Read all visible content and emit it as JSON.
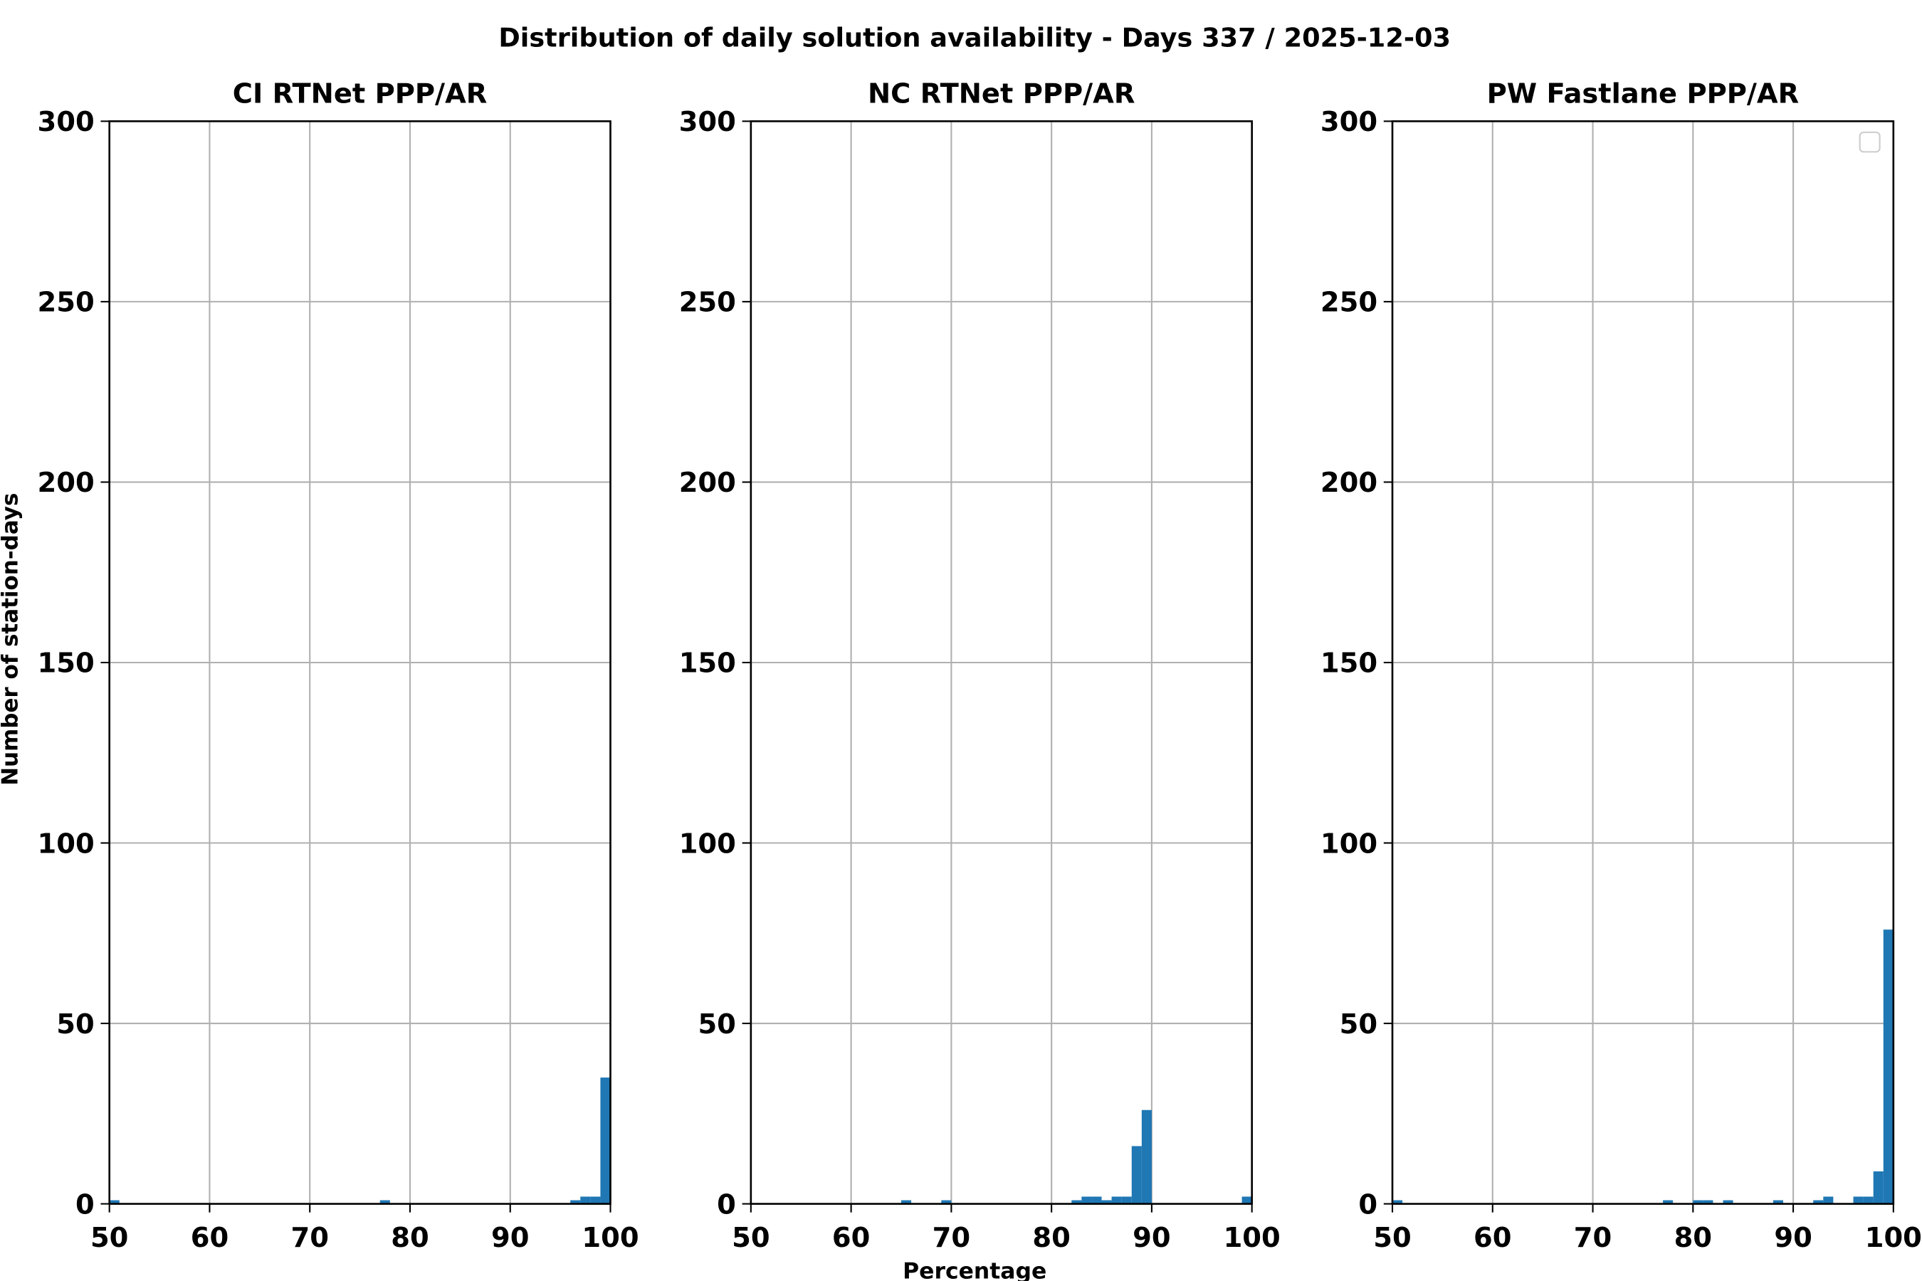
{
  "title": "Distribution of daily solution availability - Days 337  / 2025-12-03",
  "xlabel": "Percentage",
  "ylabel": "Number of station-days",
  "chart_data": [
    {
      "type": "histogram",
      "title": "CI RTNet PPP/AR",
      "color": "#1f77b4",
      "bins": [
        50,
        51,
        52,
        53,
        54,
        55,
        56,
        57,
        58,
        59,
        60,
        61,
        62,
        63,
        64,
        65,
        66,
        67,
        68,
        69,
        70,
        71,
        72,
        73,
        74,
        75,
        76,
        77,
        78,
        79,
        80,
        81,
        82,
        83,
        84,
        85,
        86,
        87,
        88,
        89,
        90,
        91,
        92,
        93,
        94,
        95,
        96,
        97,
        98,
        99,
        100
      ],
      "values": [
        1,
        0,
        0,
        0,
        0,
        0,
        0,
        0,
        0,
        0,
        0,
        0,
        0,
        0,
        0,
        0,
        0,
        0,
        0,
        0,
        0,
        0,
        0,
        0,
        0,
        0,
        0,
        1,
        0,
        0,
        0,
        0,
        0,
        0,
        0,
        0,
        0,
        0,
        0,
        0,
        0,
        0,
        0,
        0,
        0,
        0,
        1,
        2,
        2,
        35
      ],
      "xlim": [
        50,
        100
      ],
      "xticks": [
        50,
        60,
        70,
        80,
        90,
        100
      ],
      "ylim": [
        0,
        300
      ],
      "yticks": [
        0,
        50,
        100,
        150,
        200,
        250,
        300
      ],
      "grid": true
    },
    {
      "type": "histogram",
      "title": "NC RTNet PPP/AR",
      "color": "#1f77b4",
      "bins": [
        50,
        51,
        52,
        53,
        54,
        55,
        56,
        57,
        58,
        59,
        60,
        61,
        62,
        63,
        64,
        65,
        66,
        67,
        68,
        69,
        70,
        71,
        72,
        73,
        74,
        75,
        76,
        77,
        78,
        79,
        80,
        81,
        82,
        83,
        84,
        85,
        86,
        87,
        88,
        89,
        90,
        91,
        92,
        93,
        94,
        95,
        96,
        97,
        98,
        99,
        100
      ],
      "values": [
        0,
        0,
        0,
        0,
        0,
        0,
        0,
        0,
        0,
        0,
        0,
        0,
        0,
        0,
        0,
        1,
        0,
        0,
        0,
        1,
        0,
        0,
        0,
        0,
        0,
        0,
        0,
        0,
        0,
        0,
        0,
        0,
        1,
        2,
        2,
        1,
        2,
        2,
        16,
        26,
        0,
        0,
        0,
        0,
        0,
        0,
        0,
        0,
        0,
        2
      ],
      "xlim": [
        50,
        100
      ],
      "xticks": [
        50,
        60,
        70,
        80,
        90,
        100
      ],
      "ylim": [
        0,
        300
      ],
      "yticks": [
        0,
        50,
        100,
        150,
        200,
        250,
        300
      ],
      "grid": true
    },
    {
      "type": "histogram",
      "title": "PW Fastlane PPP/AR",
      "color": "#1f77b4",
      "bins": [
        50,
        51,
        52,
        53,
        54,
        55,
        56,
        57,
        58,
        59,
        60,
        61,
        62,
        63,
        64,
        65,
        66,
        67,
        68,
        69,
        70,
        71,
        72,
        73,
        74,
        75,
        76,
        77,
        78,
        79,
        80,
        81,
        82,
        83,
        84,
        85,
        86,
        87,
        88,
        89,
        90,
        91,
        92,
        93,
        94,
        95,
        96,
        97,
        98,
        99,
        100
      ],
      "values": [
        1,
        0,
        0,
        0,
        0,
        0,
        0,
        0,
        0,
        0,
        0,
        0,
        0,
        0,
        0,
        0,
        0,
        0,
        0,
        0,
        0,
        0,
        0,
        0,
        0,
        0,
        0,
        1,
        0,
        0,
        1,
        1,
        0,
        1,
        0,
        0,
        0,
        0,
        1,
        0,
        0,
        0,
        1,
        2,
        0,
        0,
        2,
        2,
        9,
        76
      ],
      "xlim": [
        50,
        100
      ],
      "xticks": [
        50,
        60,
        70,
        80,
        90,
        100
      ],
      "ylim": [
        0,
        300
      ],
      "yticks": [
        0,
        50,
        100,
        150,
        200,
        250,
        300
      ],
      "grid": true
    }
  ]
}
